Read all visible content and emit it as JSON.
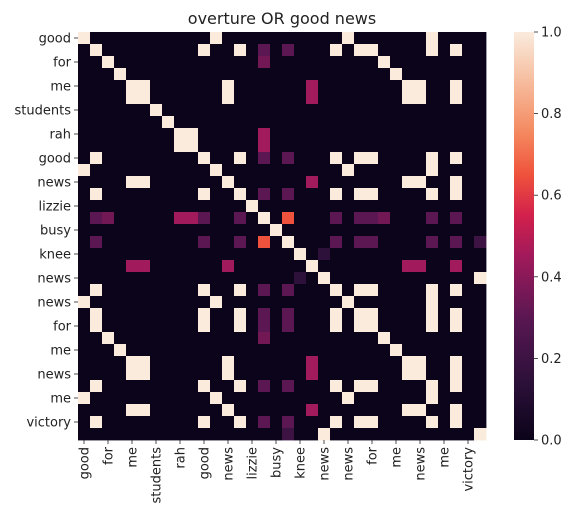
{
  "chart_data": {
    "type": "heatmap",
    "title": "overture OR good news",
    "xlabel": "",
    "ylabel": "",
    "tokens": [
      "good",
      "?",
      "for",
      "?",
      "me",
      "?",
      "?",
      "students",
      "?",
      "rah",
      "?",
      "good",
      "?",
      "news",
      "?",
      "lizzie",
      "?",
      "busy",
      "?",
      "knee",
      "?",
      "news",
      "?",
      "news",
      "?",
      "for",
      "?",
      "me",
      "?",
      "news",
      "?",
      "me",
      "?",
      "victory"
    ],
    "x_tick_labels": [
      "good",
      "for",
      "me",
      "students",
      "rah",
      "good",
      "news",
      "lizzie",
      "busy",
      "knee",
      "news",
      "news",
      "for",
      "me",
      "news",
      "me",
      "victory"
    ],
    "y_tick_labels": [
      "good",
      "for",
      "me",
      "students",
      "rah",
      "good",
      "news",
      "lizzie",
      "busy",
      "knee",
      "news",
      "news",
      "for",
      "me",
      "news",
      "me",
      "victory"
    ],
    "value_range": [
      0.0,
      1.0
    ],
    "colormap": "rocket",
    "colorbar_ticks": [
      "0.0",
      "0.2",
      "0.4",
      "0.6",
      "0.8",
      "1.0"
    ],
    "matrix": [
      [
        1,
        0,
        0,
        0,
        0,
        0,
        0,
        0,
        0,
        0,
        0,
        1,
        0,
        0,
        0,
        0,
        0,
        0,
        0,
        0,
        0,
        0,
        1,
        0,
        0,
        0,
        0,
        0,
        0,
        1,
        0,
        0,
        0,
        0
      ],
      [
        0,
        1,
        0,
        0,
        0,
        0,
        0,
        0,
        0,
        0,
        1,
        0,
        0,
        1,
        0,
        0.3,
        0,
        0.3,
        0,
        0,
        0,
        1,
        0,
        1,
        1,
        0,
        0,
        0,
        0,
        1,
        0,
        1,
        0,
        0
      ],
      [
        0,
        0,
        1,
        0,
        0,
        0,
        0,
        0,
        0,
        0,
        0,
        0,
        0,
        0,
        0,
        0.35,
        0,
        0,
        0,
        0,
        0,
        0,
        0,
        0,
        0,
        1,
        0,
        0,
        0,
        0,
        0,
        0,
        0,
        0
      ],
      [
        0,
        0,
        0,
        1,
        0,
        0,
        0,
        0,
        0,
        0,
        0,
        0,
        0,
        0,
        0,
        0,
        0,
        0,
        0,
        0,
        0,
        0,
        0,
        0,
        0,
        0,
        1,
        0,
        0,
        0,
        0,
        0,
        0,
        0
      ],
      [
        0,
        0,
        0,
        0,
        1,
        1,
        0,
        0,
        0,
        0,
        0,
        0,
        1,
        0,
        0,
        0,
        0,
        0,
        0,
        0.45,
        0,
        0,
        0,
        0,
        0,
        0,
        0,
        1,
        1,
        0,
        0,
        1,
        0,
        0
      ],
      [
        0,
        0,
        0,
        0,
        1,
        1,
        0,
        0,
        0,
        0,
        0,
        0,
        1,
        0,
        0,
        0,
        0,
        0,
        0,
        0.45,
        0,
        0,
        0,
        0,
        0,
        0,
        0,
        1,
        1,
        0,
        0,
        1,
        0,
        0
      ],
      [
        0,
        0,
        0,
        0,
        0,
        0,
        1,
        0,
        0,
        0,
        0,
        0,
        0,
        0,
        0,
        0,
        0,
        0,
        0,
        0,
        0,
        0,
        0,
        0,
        0,
        0,
        0,
        0,
        0,
        0,
        0,
        0,
        0,
        0
      ],
      [
        0,
        0,
        0,
        0,
        0,
        0,
        0,
        1,
        0,
        0,
        0,
        0,
        0,
        0,
        0,
        0,
        0,
        0,
        0,
        0,
        0,
        0,
        0,
        0,
        0,
        0,
        0,
        0,
        0,
        0,
        0,
        0,
        0,
        0
      ],
      [
        0,
        0,
        0,
        0,
        0,
        0,
        0,
        0,
        1,
        1,
        0,
        0,
        0,
        0,
        0,
        0.45,
        0,
        0,
        0,
        0,
        0,
        0,
        0,
        0,
        0,
        0,
        0,
        0,
        0,
        0,
        0,
        0,
        0,
        0
      ],
      [
        0,
        0,
        0,
        0,
        0,
        0,
        0,
        0,
        1,
        1,
        0,
        0,
        0,
        0,
        0,
        0.45,
        0,
        0,
        0,
        0,
        0,
        0,
        0,
        0,
        0,
        0,
        0,
        0,
        0,
        0,
        0,
        0,
        0,
        0
      ],
      [
        0,
        1,
        0,
        0,
        0,
        0,
        0,
        0,
        0,
        0,
        1,
        0,
        0,
        1,
        0,
        0.3,
        0,
        0.3,
        0,
        0,
        0,
        1,
        0,
        1,
        1,
        0,
        0,
        0,
        0,
        1,
        0,
        1,
        0,
        0
      ],
      [
        1,
        0,
        0,
        0,
        0,
        0,
        0,
        0,
        0,
        0,
        0,
        1,
        0,
        0,
        0,
        0,
        0,
        0,
        0,
        0,
        0,
        0,
        1,
        0,
        0,
        0,
        0,
        0,
        0,
        1,
        0,
        0,
        0,
        0
      ],
      [
        0,
        0,
        0,
        0,
        1,
        1,
        0,
        0,
        0,
        0,
        0,
        0,
        1,
        0,
        0,
        0,
        0,
        0,
        0,
        0.45,
        0,
        0,
        0,
        0,
        0,
        0,
        0,
        1,
        1,
        0,
        0,
        1,
        0,
        0
      ],
      [
        0,
        1,
        0,
        0,
        0,
        0,
        0,
        0,
        0,
        0,
        1,
        0,
        0,
        1,
        0,
        0.3,
        0,
        0.3,
        0,
        0,
        0,
        1,
        0,
        1,
        1,
        0,
        0,
        0,
        0,
        1,
        0,
        1,
        0,
        0
      ],
      [
        0,
        0,
        0,
        0,
        0,
        0,
        0,
        0,
        0,
        0,
        0,
        0,
        0,
        0,
        1,
        0,
        0,
        0,
        0,
        0,
        0,
        0,
        0,
        0,
        0,
        0,
        0,
        0,
        0,
        0,
        0,
        0,
        0,
        0
      ],
      [
        0,
        0.3,
        0.35,
        0,
        0,
        0,
        0,
        0,
        0.45,
        0.45,
        0.3,
        0,
        0,
        0.3,
        0,
        1,
        0,
        0.65,
        0,
        0,
        0,
        0.3,
        0,
        0.3,
        0.3,
        0.35,
        0,
        0,
        0,
        0.3,
        0,
        0.3,
        0,
        0
      ],
      [
        0,
        0,
        0,
        0,
        0,
        0,
        0,
        0,
        0,
        0,
        0,
        0,
        0,
        0,
        0,
        0,
        1,
        0,
        0,
        0,
        0,
        0,
        0,
        0,
        0,
        0,
        0,
        0,
        0,
        0,
        0,
        0,
        0,
        0
      ],
      [
        0,
        0.3,
        0,
        0,
        0,
        0,
        0,
        0,
        0,
        0,
        0.3,
        0,
        0,
        0.3,
        0,
        0.65,
        0,
        1,
        0,
        0,
        0,
        0.3,
        0,
        0.3,
        0.3,
        0,
        0,
        0,
        0,
        0.3,
        0,
        0.3,
        0,
        0.2
      ],
      [
        0,
        0,
        0,
        0,
        0,
        0,
        0,
        0,
        0,
        0,
        0,
        0,
        0,
        0,
        0,
        0,
        0,
        0,
        1,
        0,
        0.15,
        0,
        0,
        0,
        0,
        0,
        0,
        0,
        0,
        0,
        0,
        0,
        0,
        0
      ],
      [
        0,
        0,
        0,
        0,
        0.45,
        0.45,
        0,
        0,
        0,
        0,
        0,
        0,
        0.45,
        0,
        0,
        0,
        0,
        0,
        0,
        1,
        0,
        0,
        0,
        0,
        0,
        0,
        0,
        0.45,
        0.45,
        0,
        0,
        0.45,
        0,
        0
      ],
      [
        0,
        0,
        0,
        0,
        0,
        0,
        0,
        0,
        0,
        0,
        0,
        0,
        0,
        0,
        0,
        0,
        0,
        0,
        0.15,
        0,
        1,
        0,
        0,
        0,
        0,
        0,
        0,
        0,
        0,
        0,
        0,
        0,
        0,
        1
      ],
      [
        0,
        1,
        0,
        0,
        0,
        0,
        0,
        0,
        0,
        0,
        1,
        0,
        0,
        1,
        0,
        0.3,
        0,
        0.3,
        0,
        0,
        0,
        1,
        0,
        1,
        1,
        0,
        0,
        0,
        0,
        1,
        0,
        1,
        0,
        0
      ],
      [
        1,
        0,
        0,
        0,
        0,
        0,
        0,
        0,
        0,
        0,
        0,
        1,
        0,
        0,
        0,
        0,
        0,
        0,
        0,
        0,
        0,
        0,
        1,
        0,
        0,
        0,
        0,
        0,
        0,
        1,
        0,
        0,
        0,
        0
      ],
      [
        0,
        1,
        0,
        0,
        0,
        0,
        0,
        0,
        0,
        0,
        1,
        0,
        0,
        1,
        0,
        0.3,
        0,
        0.3,
        0,
        0,
        0,
        1,
        0,
        1,
        1,
        0,
        0,
        0,
        0,
        1,
        0,
        1,
        0,
        0
      ],
      [
        0,
        1,
        0,
        0,
        0,
        0,
        0,
        0,
        0,
        0,
        1,
        0,
        0,
        1,
        0,
        0.3,
        0,
        0.3,
        0,
        0,
        0,
        1,
        0,
        1,
        1,
        0,
        0,
        0,
        0,
        1,
        0,
        1,
        0,
        0
      ],
      [
        0,
        0,
        1,
        0,
        0,
        0,
        0,
        0,
        0,
        0,
        0,
        0,
        0,
        0,
        0,
        0.35,
        0,
        0,
        0,
        0,
        0,
        0,
        0,
        0,
        0,
        1,
        0,
        0,
        0,
        0,
        0,
        0,
        0,
        0
      ],
      [
        0,
        0,
        0,
        1,
        0,
        0,
        0,
        0,
        0,
        0,
        0,
        0,
        0,
        0,
        0,
        0,
        0,
        0,
        0,
        0,
        0,
        0,
        0,
        0,
        0,
        0,
        1,
        0,
        0,
        0,
        0,
        0,
        0,
        0
      ],
      [
        0,
        0,
        0,
        0,
        1,
        1,
        0,
        0,
        0,
        0,
        0,
        0,
        1,
        0,
        0,
        0,
        0,
        0,
        0,
        0.45,
        0,
        0,
        0,
        0,
        0,
        0,
        0,
        1,
        1,
        0,
        0,
        1,
        0,
        0
      ],
      [
        0,
        0,
        0,
        0,
        1,
        1,
        0,
        0,
        0,
        0,
        0,
        0,
        1,
        0,
        0,
        0,
        0,
        0,
        0,
        0.45,
        0,
        0,
        0,
        0,
        0,
        0,
        0,
        1,
        1,
        0,
        0,
        1,
        0,
        0
      ],
      [
        0,
        1,
        0,
        0,
        0,
        0,
        0,
        0,
        0,
        0,
        1,
        0,
        0,
        1,
        0,
        0.3,
        0,
        0.3,
        0,
        0,
        0,
        1,
        0,
        1,
        1,
        0,
        0,
        0,
        0,
        1,
        0,
        1,
        0,
        0
      ],
      [
        1,
        0,
        0,
        0,
        0,
        0,
        0,
        0,
        0,
        0,
        0,
        1,
        0,
        0,
        0,
        0,
        0,
        0,
        0,
        0,
        0,
        0,
        1,
        0,
        0,
        0,
        0,
        0,
        0,
        1,
        0,
        0,
        0,
        0
      ],
      [
        0,
        0,
        0,
        0,
        1,
        1,
        0,
        0,
        0,
        0,
        0,
        0,
        1,
        0,
        0,
        0,
        0,
        0,
        0,
        0.45,
        0,
        0,
        0,
        0,
        0,
        0,
        0,
        1,
        1,
        0,
        0,
        1,
        0,
        0
      ],
      [
        0,
        1,
        0,
        0,
        0,
        0,
        0,
        0,
        0,
        0,
        1,
        0,
        0,
        1,
        0,
        0.3,
        0,
        0.3,
        0,
        0,
        0,
        1,
        0,
        1,
        1,
        0,
        0,
        0,
        0,
        1,
        0,
        1,
        0,
        0
      ],
      [
        0,
        0,
        0,
        0,
        0,
        0,
        0,
        0,
        0,
        0,
        0,
        0,
        0,
        0,
        0,
        0,
        0,
        0.2,
        0,
        0,
        1,
        0,
        0,
        0,
        0,
        0,
        0,
        0,
        0,
        0,
        0,
        0,
        0,
        1
      ]
    ]
  }
}
